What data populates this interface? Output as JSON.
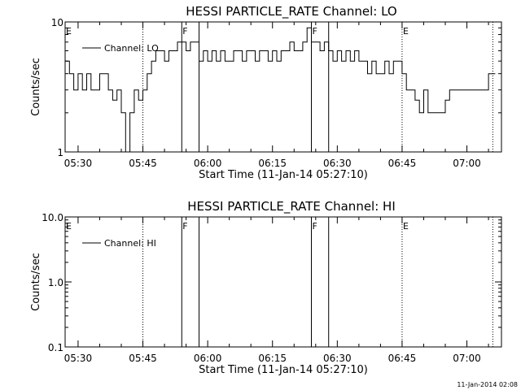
{
  "chart_data": [
    {
      "type": "line",
      "title": "HESSI PARTICLE_RATE Channel: LO",
      "xlabel": "Start Time (11-Jan-14 05:27:10)",
      "ylabel": "Counts/sec",
      "yscale": "log",
      "ylim": [
        1,
        10
      ],
      "yticks": [
        "1",
        "10"
      ],
      "xlim": [
        "05:27",
        "07:08"
      ],
      "xticks": [
        "05:30",
        "05:45",
        "06:00",
        "06:15",
        "06:30",
        "06:45",
        "07:00"
      ],
      "legend": {
        "entry": "Channel: LO",
        "placement": "top-left"
      },
      "markers": [
        {
          "time": "05:27",
          "label": "E",
          "style": "none"
        },
        {
          "time": "05:45",
          "label": "",
          "style": "dotted"
        },
        {
          "time": "05:54",
          "label": "F",
          "style": "solid"
        },
        {
          "time": "05:58",
          "label": "",
          "style": "solid"
        },
        {
          "time": "06:24",
          "label": "F",
          "style": "solid"
        },
        {
          "time": "06:28",
          "label": "",
          "style": "solid"
        },
        {
          "time": "06:45",
          "label": "E",
          "style": "dotted"
        },
        {
          "time": "07:06",
          "label": "",
          "style": "dotted"
        }
      ],
      "series": [
        {
          "x": [
            "05:27",
            "05:28",
            "05:29",
            "05:30",
            "05:31",
            "05:32",
            "05:33",
            "05:34",
            "05:35",
            "05:36",
            "05:37",
            "05:38",
            "05:39",
            "05:40",
            "05:41",
            "05:42",
            "05:43",
            "05:44",
            "05:45",
            "05:46",
            "05:47",
            "05:48",
            "05:49",
            "05:50",
            "05:51",
            "05:52",
            "05:53",
            "05:54",
            "05:55",
            "05:56",
            "05:57",
            "05:58",
            "05:59",
            "06:00",
            "06:01",
            "06:02",
            "06:03",
            "06:04",
            "06:05",
            "06:06",
            "06:07",
            "06:08",
            "06:09",
            "06:10",
            "06:11",
            "06:12",
            "06:13",
            "06:14",
            "06:15",
            "06:16",
            "06:17",
            "06:18",
            "06:19",
            "06:20",
            "06:21",
            "06:22",
            "06:23",
            "06:24",
            "06:25",
            "06:26",
            "06:27",
            "06:28",
            "06:29",
            "06:30",
            "06:31",
            "06:32",
            "06:33",
            "06:34",
            "06:35",
            "06:36",
            "06:37",
            "06:38",
            "06:39",
            "06:40",
            "06:41",
            "06:42",
            "06:43",
            "06:44",
            "06:45",
            "06:46",
            "06:47",
            "06:48",
            "06:49",
            "06:50",
            "06:51",
            "06:52",
            "06:53",
            "06:54",
            "06:55",
            "06:56",
            "06:57",
            "06:58",
            "06:59",
            "07:00",
            "07:01",
            "07:02",
            "07:03",
            "07:04",
            "07:05",
            "07:06"
          ],
          "values": [
            5,
            4,
            3,
            4,
            3,
            4,
            3,
            3,
            4,
            4,
            3,
            2.5,
            3,
            2,
            1,
            2,
            3,
            2.5,
            3,
            4,
            5,
            6,
            6,
            5,
            6,
            6,
            7,
            7,
            6,
            7,
            7,
            5,
            6,
            5,
            6,
            5,
            6,
            5,
            5,
            6,
            6,
            5,
            6,
            6,
            5,
            6,
            6,
            5,
            6,
            5,
            6,
            6,
            7,
            6,
            6,
            7,
            9,
            7,
            7,
            6,
            7,
            6,
            5,
            6,
            5,
            6,
            5,
            6,
            5,
            5,
            4,
            5,
            4,
            4,
            5,
            4,
            5,
            5,
            4,
            3,
            3,
            2.5,
            2,
            3,
            2,
            2,
            2,
            2,
            2.5,
            3,
            3,
            3,
            3,
            3,
            3,
            3,
            3,
            3,
            4,
            4
          ]
        }
      ]
    },
    {
      "type": "line",
      "title": "HESSI PARTICLE_RATE Channel: HI",
      "xlabel": "Start Time (11-Jan-14 05:27:10)",
      "ylabel": "Counts/sec",
      "yscale": "log",
      "ylim": [
        0.1,
        10
      ],
      "yticks": [
        "0.1",
        "1.0",
        "10.0"
      ],
      "xlim": [
        "05:27",
        "07:08"
      ],
      "xticks": [
        "05:30",
        "05:45",
        "06:00",
        "06:15",
        "06:30",
        "06:45",
        "07:00"
      ],
      "legend": {
        "entry": "Channel: HI",
        "placement": "top-left"
      },
      "markers": [
        {
          "time": "05:27",
          "label": "E",
          "style": "none"
        },
        {
          "time": "05:45",
          "label": "",
          "style": "dotted"
        },
        {
          "time": "05:54",
          "label": "F",
          "style": "solid"
        },
        {
          "time": "05:58",
          "label": "",
          "style": "solid"
        },
        {
          "time": "06:24",
          "label": "F",
          "style": "solid"
        },
        {
          "time": "06:28",
          "label": "",
          "style": "solid"
        },
        {
          "time": "06:45",
          "label": "E",
          "style": "dotted"
        },
        {
          "time": "07:06",
          "label": "",
          "style": "dotted"
        }
      ],
      "series": []
    }
  ],
  "footer": {
    "timestamp": "11-Jan-2014 02:08"
  }
}
